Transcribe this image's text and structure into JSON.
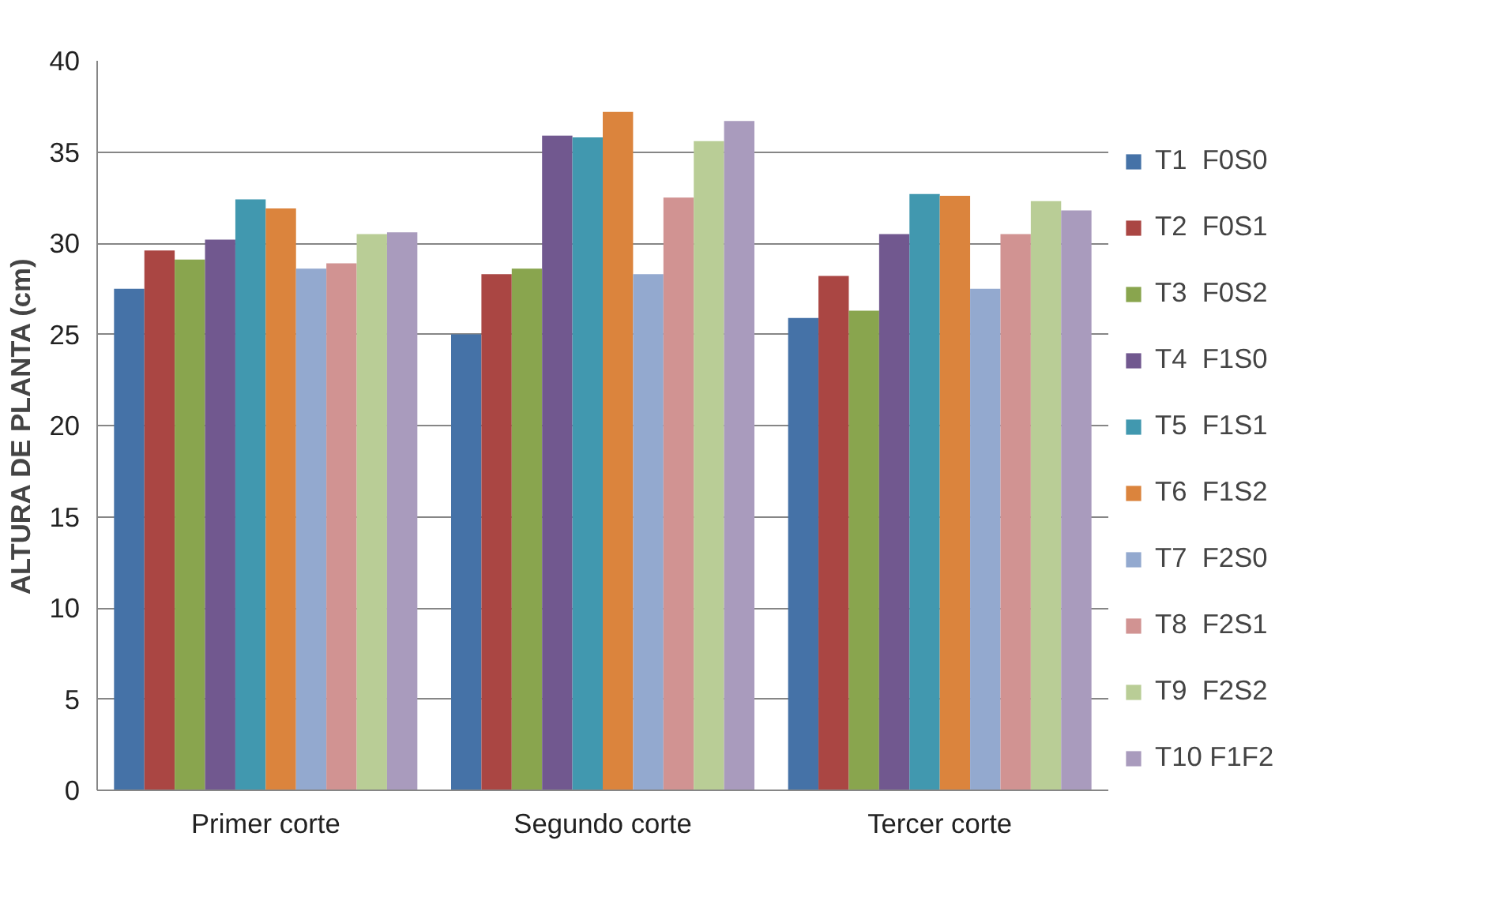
{
  "chart_data": {
    "type": "bar",
    "ylabel": "ALTURA DE PLANTA (cm)",
    "categories": [
      "Primer corte",
      "Segundo corte",
      "Tercer corte"
    ],
    "ylim": [
      0,
      40
    ],
    "yticks": [
      0,
      5,
      10,
      15,
      20,
      25,
      30,
      35,
      40
    ],
    "grid": "y",
    "legend": "right",
    "series": [
      {
        "name": "T1  F0S0",
        "color": "#4572a7",
        "values": [
          27.5,
          25.0,
          25.9
        ]
      },
      {
        "name": "T2  F0S1",
        "color": "#aa4643",
        "values": [
          29.6,
          28.3,
          28.2
        ]
      },
      {
        "name": "T3  F0S2",
        "color": "#89a54e",
        "values": [
          29.1,
          28.6,
          26.3
        ]
      },
      {
        "name": "T4  F1S0",
        "color": "#71588f",
        "values": [
          30.2,
          35.9,
          30.5
        ]
      },
      {
        "name": "T5  F1S1",
        "color": "#4198af",
        "values": [
          32.4,
          35.8,
          32.7
        ]
      },
      {
        "name": "T6  F1S2",
        "color": "#db843d",
        "values": [
          31.9,
          37.2,
          32.6
        ]
      },
      {
        "name": "T7  F2S0",
        "color": "#93a9cf",
        "values": [
          28.6,
          28.3,
          27.5
        ]
      },
      {
        "name": "T8  F2S1",
        "color": "#d19392",
        "values": [
          28.9,
          32.5,
          30.5
        ]
      },
      {
        "name": "T9  F2S2",
        "color": "#b9cd96",
        "values": [
          30.5,
          35.6,
          32.3
        ]
      },
      {
        "name": "T10 F1F2",
        "color": "#a99bbd",
        "values": [
          30.6,
          36.7,
          31.8
        ]
      }
    ]
  }
}
